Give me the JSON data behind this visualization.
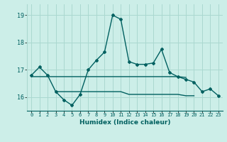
{
  "title": "",
  "xlabel": "Humidex (Indice chaleur)",
  "ylabel": "",
  "bg_color": "#cceee8",
  "grid_color": "#aad8d0",
  "line_color": "#006060",
  "x": [
    0,
    1,
    2,
    3,
    4,
    5,
    6,
    7,
    8,
    9,
    10,
    11,
    12,
    13,
    14,
    15,
    16,
    17,
    18,
    19,
    20,
    21,
    22,
    23
  ],
  "y_main": [
    16.8,
    17.1,
    16.8,
    16.2,
    15.9,
    15.7,
    16.1,
    17.0,
    17.35,
    17.65,
    19.0,
    18.85,
    17.3,
    17.2,
    17.2,
    17.25,
    17.75,
    16.9,
    16.75,
    16.65,
    16.55,
    16.2,
    16.3,
    16.05
  ],
  "y_upper": [
    16.75,
    16.75,
    16.75,
    16.75,
    16.75,
    16.75,
    16.75,
    16.75,
    16.75,
    16.75,
    16.75,
    16.75,
    16.75,
    16.75,
    16.75,
    16.75,
    16.75,
    16.75,
    16.75,
    16.72,
    null,
    null,
    null,
    null
  ],
  "y_lower": [
    null,
    null,
    null,
    16.2,
    16.2,
    16.2,
    16.2,
    16.2,
    16.2,
    16.2,
    16.2,
    16.2,
    16.1,
    16.1,
    16.1,
    16.1,
    16.1,
    16.1,
    16.1,
    16.05,
    16.05,
    null,
    null,
    null
  ],
  "ylim": [
    15.5,
    19.4
  ],
  "yticks": [
    16,
    17,
    18,
    19
  ],
  "xlim": [
    -0.5,
    23.5
  ]
}
